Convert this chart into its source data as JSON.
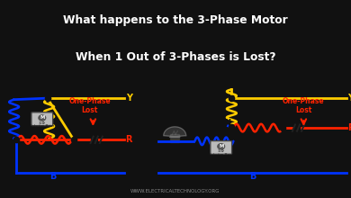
{
  "title_line1": "What happens to the 3-Phase Motor",
  "title_line2": "When 1 Out of 3-Phases is Lost?",
  "title_bg": "#111111",
  "title_color": "#ffffff",
  "bg_color": "#f0f0f0",
  "color_R": "#ff2200",
  "color_Y": "#ffcc00",
  "color_B": "#0033ff",
  "one_phase_lost_color": "#ff2200",
  "website": "WWW.ELECTRICALTECHNOLOGY.ORG",
  "website_color": "#888888"
}
